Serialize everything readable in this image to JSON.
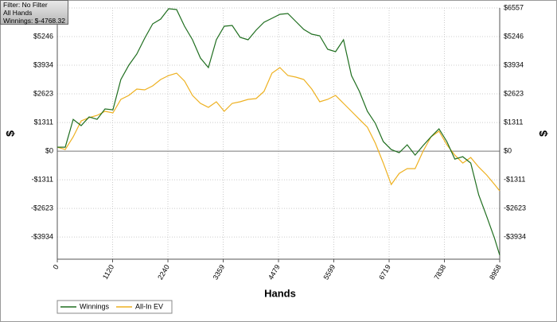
{
  "chart_data": {
    "type": "line",
    "annotations": [
      "Filter: No Filter",
      "All Hands",
      "Winnings: $-4768.32"
    ],
    "x_label": "Hands",
    "y_label": "$",
    "y2_label": "$",
    "x": [
      0,
      161,
      322,
      483,
      644,
      805,
      966,
      1127,
      1288,
      1449,
      1610,
      1771,
      1932,
      2093,
      2254,
      2415,
      2576,
      2737,
      2898,
      3059,
      3220,
      3381,
      3542,
      3703,
      3864,
      4025,
      4186,
      4347,
      4508,
      4669,
      4830,
      4991,
      5152,
      5313,
      5474,
      5635,
      5796,
      5957,
      6118,
      6279,
      6440,
      6601,
      6762,
      6923,
      7084,
      7245,
      7406,
      7567,
      7728,
      7889,
      8050,
      8211,
      8372,
      8533,
      8694,
      8855,
      8958
    ],
    "series": [
      {
        "name": "Winnings",
        "color": "#1f6e1f",
        "values": [
          182,
          182,
          1457,
          1166,
          1566,
          1457,
          1931,
          1894,
          3279,
          3934,
          4444,
          5173,
          5829,
          6047,
          6521,
          6485,
          5720,
          5100,
          4262,
          3825,
          5100,
          5720,
          5756,
          5209,
          5100,
          5537,
          5902,
          6084,
          6266,
          6302,
          5938,
          5574,
          5355,
          5282,
          4663,
          4554,
          5100,
          3461,
          2732,
          1822,
          1275,
          437,
          73,
          -73,
          291,
          -182,
          255,
          656,
          1020,
          437,
          -364,
          -255,
          -546,
          -2004,
          -2987,
          -4008,
          -4768
        ]
      },
      {
        "name": "All-In EV",
        "color": "#eeb121",
        "values": [
          182,
          73,
          656,
          1384,
          1530,
          1639,
          1822,
          1749,
          2368,
          2550,
          2842,
          2805,
          2987,
          3279,
          3461,
          3570,
          3206,
          2550,
          2186,
          2004,
          2259,
          1822,
          2186,
          2259,
          2368,
          2404,
          2732,
          3570,
          3825,
          3461,
          3388,
          3279,
          2842,
          2259,
          2368,
          2550,
          2186,
          1822,
          1457,
          1093,
          364,
          -546,
          -1530,
          -1020,
          -801,
          -801,
          0,
          656,
          911,
          291,
          -182,
          -546,
          -291,
          -729,
          -1093,
          -1530,
          -1822
        ]
      }
    ],
    "xlim": [
      0,
      8958
    ],
    "xticks": [
      0,
      1120,
      2240,
      3359,
      4479,
      5599,
      6719,
      7838,
      8958
    ],
    "ylim": [
      -4950,
      6557
    ],
    "yticks": [
      {
        "value": -3934,
        "label": "-$3934"
      },
      {
        "value": -2623,
        "label": "-$2623"
      },
      {
        "value": -1311,
        "label": "-$1311"
      },
      {
        "value": 0,
        "label": "$0"
      },
      {
        "value": 1311,
        "label": "$1311"
      },
      {
        "value": 2623,
        "label": "$2623"
      },
      {
        "value": 3934,
        "label": "$3934"
      },
      {
        "value": 5246,
        "label": "$5246"
      },
      {
        "value": 6557,
        "label": "$6557"
      }
    ],
    "grid": true
  }
}
